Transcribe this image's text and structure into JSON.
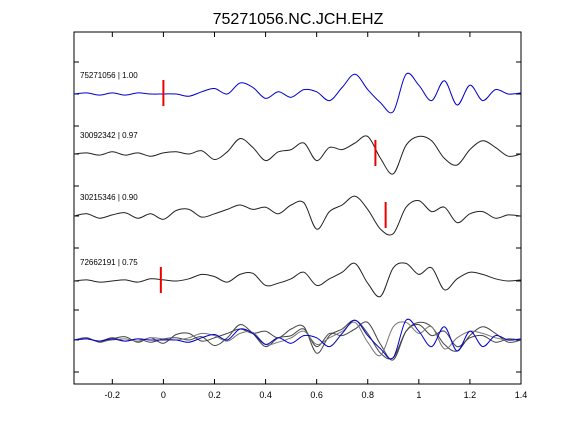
{
  "chart_data": {
    "type": "line",
    "title": "75271056.NC.JCH.EHZ",
    "xlabel": "",
    "ylabel": "",
    "xlim": [
      -0.35,
      1.4
    ],
    "xticks": [
      -0.2,
      0,
      0.2,
      0.4,
      0.6,
      0.8,
      1,
      1.2,
      1.4
    ],
    "xtick_labels": [
      "-0.2",
      "0",
      "0.2",
      "0.4",
      "0.6",
      "0.8",
      "1",
      "1.2",
      "1.4"
    ],
    "grid": false,
    "colors": {
      "reference": "#0000cc",
      "trace": "#222222",
      "pick": "#ee0000",
      "overlay_gray": "#777777"
    },
    "series": [
      {
        "label": "75271056 | 1.00",
        "color": "#0000cc",
        "pick": 0.0,
        "x": [
          -0.35,
          -0.3,
          -0.25,
          -0.2,
          -0.15,
          -0.1,
          -0.05,
          0.0,
          0.05,
          0.1,
          0.15,
          0.2,
          0.25,
          0.3,
          0.35,
          0.4,
          0.45,
          0.5,
          0.55,
          0.6,
          0.65,
          0.7,
          0.75,
          0.8,
          0.85,
          0.9,
          0.95,
          1.0,
          1.05,
          1.1,
          1.15,
          1.2,
          1.25,
          1.3,
          1.35,
          1.4
        ],
        "y": [
          0.0,
          0.05,
          -0.05,
          0.05,
          -0.05,
          0.05,
          0.0,
          0.0,
          0.0,
          -0.1,
          0.1,
          0.25,
          0.0,
          0.5,
          0.3,
          -0.2,
          0.1,
          -0.15,
          0.2,
          0.1,
          -0.3,
          0.3,
          0.9,
          0.2,
          -0.4,
          -0.8,
          0.9,
          0.4,
          -0.3,
          0.6,
          -0.5,
          0.4,
          -0.3,
          0.2,
          0.0,
          0.05
        ]
      },
      {
        "label": "30092342 | 0.97",
        "color": "#222222",
        "pick": 0.83,
        "x": [
          -0.35,
          -0.3,
          -0.25,
          -0.2,
          -0.15,
          -0.1,
          -0.05,
          0.0,
          0.05,
          0.1,
          0.15,
          0.2,
          0.25,
          0.3,
          0.35,
          0.4,
          0.45,
          0.5,
          0.55,
          0.6,
          0.65,
          0.7,
          0.75,
          0.8,
          0.85,
          0.9,
          0.95,
          1.0,
          1.05,
          1.1,
          1.15,
          1.2,
          1.25,
          1.3,
          1.35,
          1.4
        ],
        "y": [
          0.0,
          0.05,
          -0.05,
          0.1,
          -0.05,
          0.05,
          -0.1,
          0.05,
          0.1,
          0.0,
          0.15,
          -0.25,
          0.1,
          0.7,
          0.3,
          -0.3,
          0.1,
          0.2,
          0.5,
          -0.3,
          0.3,
          0.2,
          0.5,
          0.8,
          -0.2,
          -0.9,
          0.4,
          0.8,
          0.6,
          -0.2,
          -0.5,
          0.2,
          0.6,
          0.3,
          -0.1,
          0.0
        ]
      },
      {
        "label": "30215346 | 0.90",
        "color": "#222222",
        "pick": 0.87,
        "x": [
          -0.35,
          -0.3,
          -0.25,
          -0.2,
          -0.15,
          -0.1,
          -0.05,
          0.0,
          0.05,
          0.1,
          0.15,
          0.2,
          0.25,
          0.3,
          0.35,
          0.4,
          0.45,
          0.5,
          0.55,
          0.6,
          0.65,
          0.7,
          0.75,
          0.8,
          0.85,
          0.9,
          0.95,
          1.0,
          1.05,
          1.1,
          1.15,
          1.2,
          1.25,
          1.3,
          1.35,
          1.4
        ],
        "y": [
          0.0,
          0.1,
          -0.1,
          0.05,
          0.15,
          -0.1,
          0.1,
          -0.15,
          0.25,
          0.3,
          -0.05,
          0.1,
          0.3,
          0.5,
          0.3,
          0.4,
          0.1,
          0.5,
          0.6,
          -0.6,
          0.2,
          0.5,
          0.9,
          0.3,
          -0.6,
          -0.8,
          0.4,
          0.7,
          0.2,
          0.4,
          -0.3,
          0.1,
          0.2,
          -0.1,
          0.05,
          0.0
        ]
      },
      {
        "label": "72662191 | 0.75",
        "color": "#222222",
        "pick": -0.01,
        "x": [
          -0.35,
          -0.3,
          -0.25,
          -0.2,
          -0.15,
          -0.1,
          -0.05,
          0.0,
          0.05,
          0.1,
          0.15,
          0.2,
          0.25,
          0.3,
          0.35,
          0.4,
          0.45,
          0.5,
          0.55,
          0.6,
          0.65,
          0.7,
          0.75,
          0.8,
          0.85,
          0.9,
          0.95,
          1.0,
          1.05,
          1.1,
          1.15,
          1.2,
          1.25,
          1.3,
          1.35,
          1.4
        ],
        "y": [
          0.0,
          0.05,
          -0.05,
          0.0,
          0.05,
          -0.05,
          0.1,
          0.05,
          0.0,
          0.1,
          0.3,
          0.2,
          -0.05,
          0.3,
          0.35,
          -0.2,
          -0.1,
          0.1,
          0.4,
          -0.2,
          0.1,
          0.4,
          0.8,
          -0.1,
          -0.7,
          0.6,
          0.8,
          0.3,
          0.6,
          -0.4,
          0.1,
          0.4,
          0.3,
          0.1,
          0.0,
          0.05
        ]
      }
    ]
  }
}
